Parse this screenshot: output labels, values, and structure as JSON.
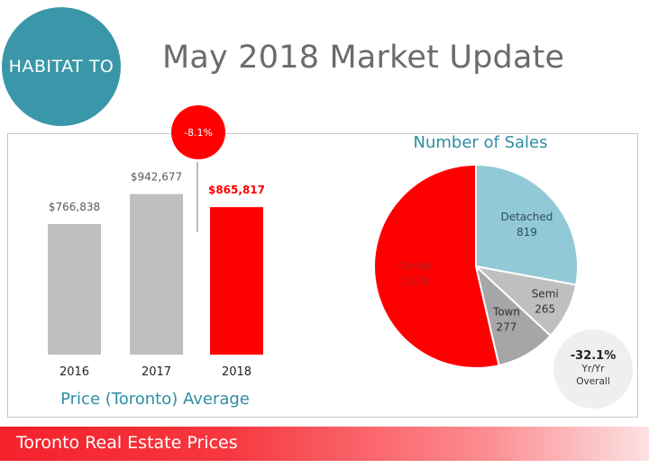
{
  "header": {
    "logo_text": "HABITAT TO",
    "title": "May 2018 Market Update"
  },
  "banner_text": "Toronto Real Estate Prices",
  "change_badge": "-8.1%",
  "yoy": {
    "value": "-32.1%",
    "line1": "Yr/Yr",
    "line2": "Overall"
  },
  "chart_data": [
    {
      "type": "bar",
      "title": "Price (Toronto) Average",
      "categories": [
        "2016",
        "2017",
        "2018"
      ],
      "values": [
        766838,
        942677,
        865817
      ],
      "value_labels": [
        "$766,838",
        "$942,677",
        "$865,817"
      ],
      "colors": [
        "#bfbfbf",
        "#bfbfbf",
        "#ff0000"
      ],
      "label_colors": [
        "#595959",
        "#595959",
        "#ff0000"
      ],
      "ylim": [
        0,
        1300000
      ]
    },
    {
      "type": "pie",
      "title": "Number of Sales",
      "categories": [
        "Detached",
        "Semi",
        "Town",
        "Condo"
      ],
      "values": [
        819,
        265,
        277,
        1574
      ],
      "colors": [
        "#92c9d6",
        "#bfbfbf",
        "#a6a6a6",
        "#ff0000"
      ]
    }
  ]
}
